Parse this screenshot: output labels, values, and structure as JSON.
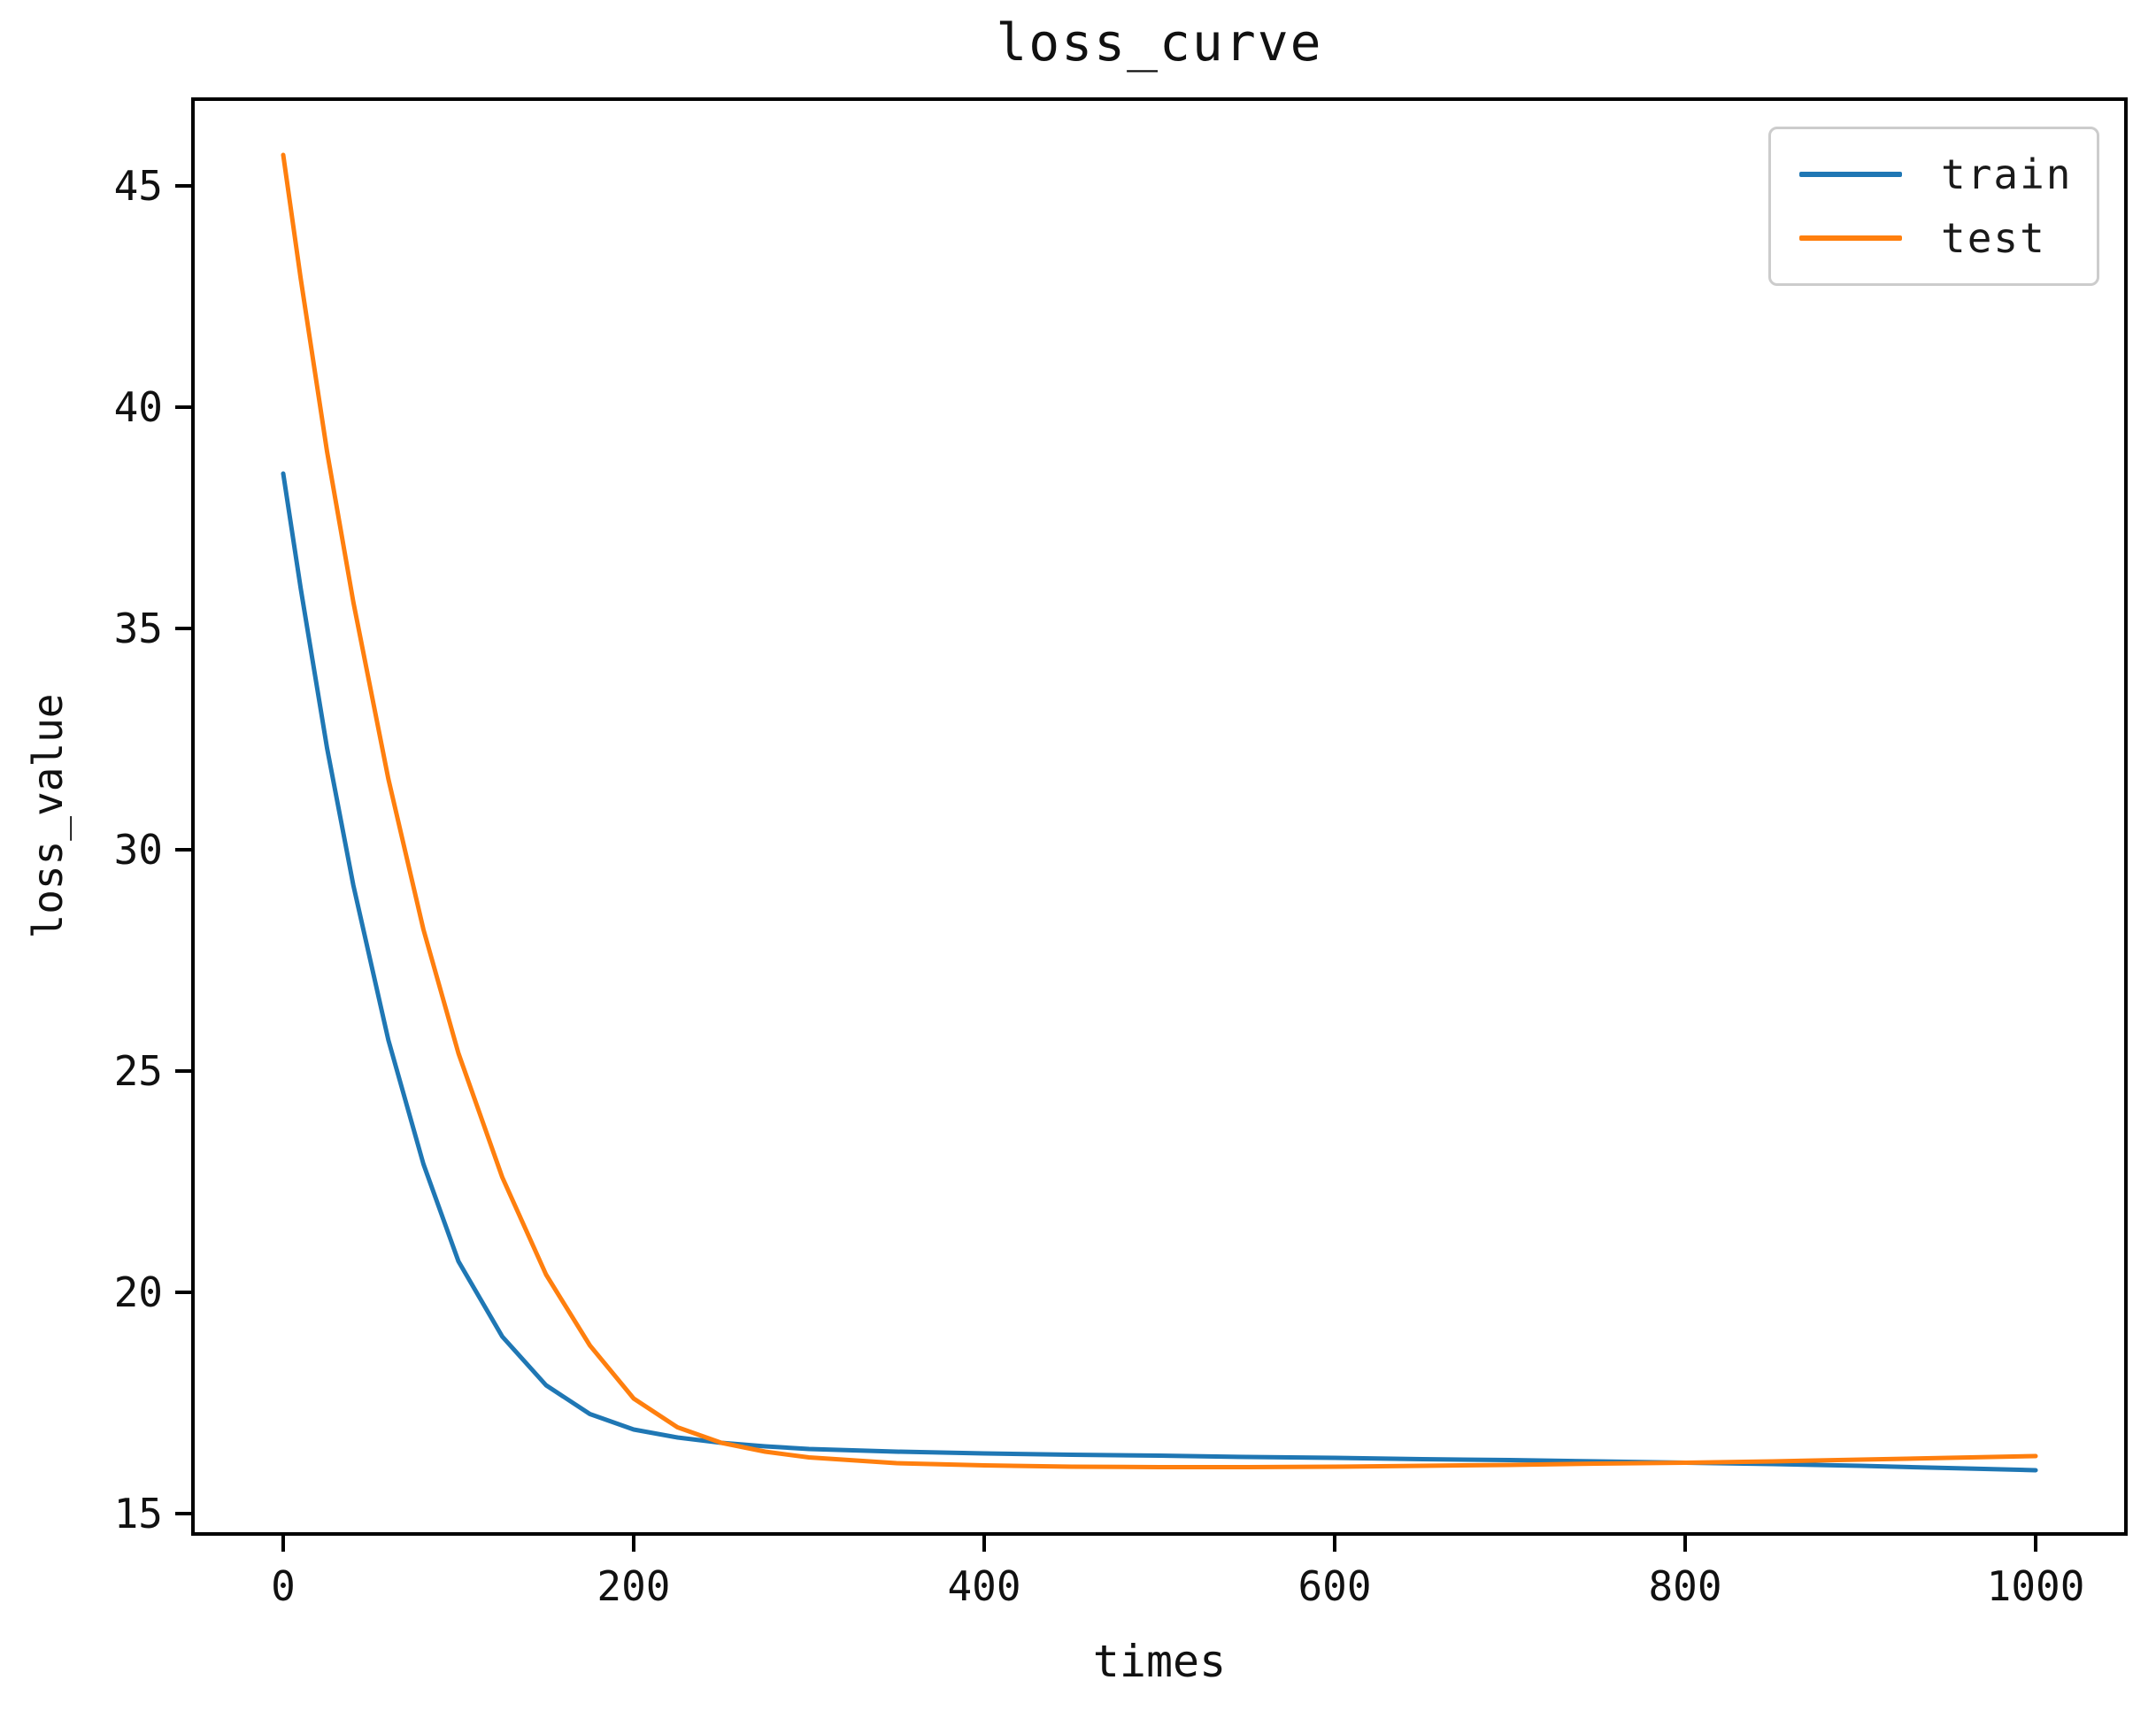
{
  "chart_data": {
    "type": "line",
    "title": "loss_curve",
    "xlabel": "times",
    "ylabel": "loss_value",
    "x_ticks": [
      0,
      200,
      400,
      600,
      800,
      1000
    ],
    "y_ticks": [
      15,
      20,
      25,
      30,
      35,
      40,
      45
    ],
    "xlim": [
      -51.5,
      1051.5
    ],
    "ylim": [
      14.54,
      46.96
    ],
    "grid": false,
    "legend_position": "upper right",
    "axis_color": "#000000",
    "text_color": "#111111",
    "x": [
      0,
      10,
      25,
      40,
      60,
      80,
      100,
      125,
      150,
      175,
      200,
      225,
      250,
      275,
      300,
      350,
      400,
      450,
      500,
      550,
      600,
      650,
      700,
      750,
      800,
      850,
      900,
      950,
      1000
    ],
    "series": [
      {
        "name": "train",
        "color": "#1f77b4",
        "values": [
          38.5,
          35.9,
          32.3,
          29.2,
          25.7,
          22.9,
          20.7,
          19.0,
          17.9,
          17.25,
          16.9,
          16.72,
          16.6,
          16.52,
          16.46,
          16.4,
          16.36,
          16.33,
          16.31,
          16.28,
          16.26,
          16.23,
          16.21,
          16.18,
          16.15,
          16.12,
          16.08,
          16.03,
          15.98
        ]
      },
      {
        "name": "test",
        "color": "#ff7f0e",
        "values": [
          45.7,
          42.9,
          39.0,
          35.6,
          31.6,
          28.2,
          25.4,
          22.6,
          20.4,
          18.8,
          17.6,
          16.95,
          16.6,
          16.4,
          16.27,
          16.14,
          16.09,
          16.06,
          16.05,
          16.05,
          16.06,
          16.08,
          16.1,
          16.13,
          16.15,
          16.18,
          16.22,
          16.26,
          16.3
        ]
      }
    ]
  }
}
